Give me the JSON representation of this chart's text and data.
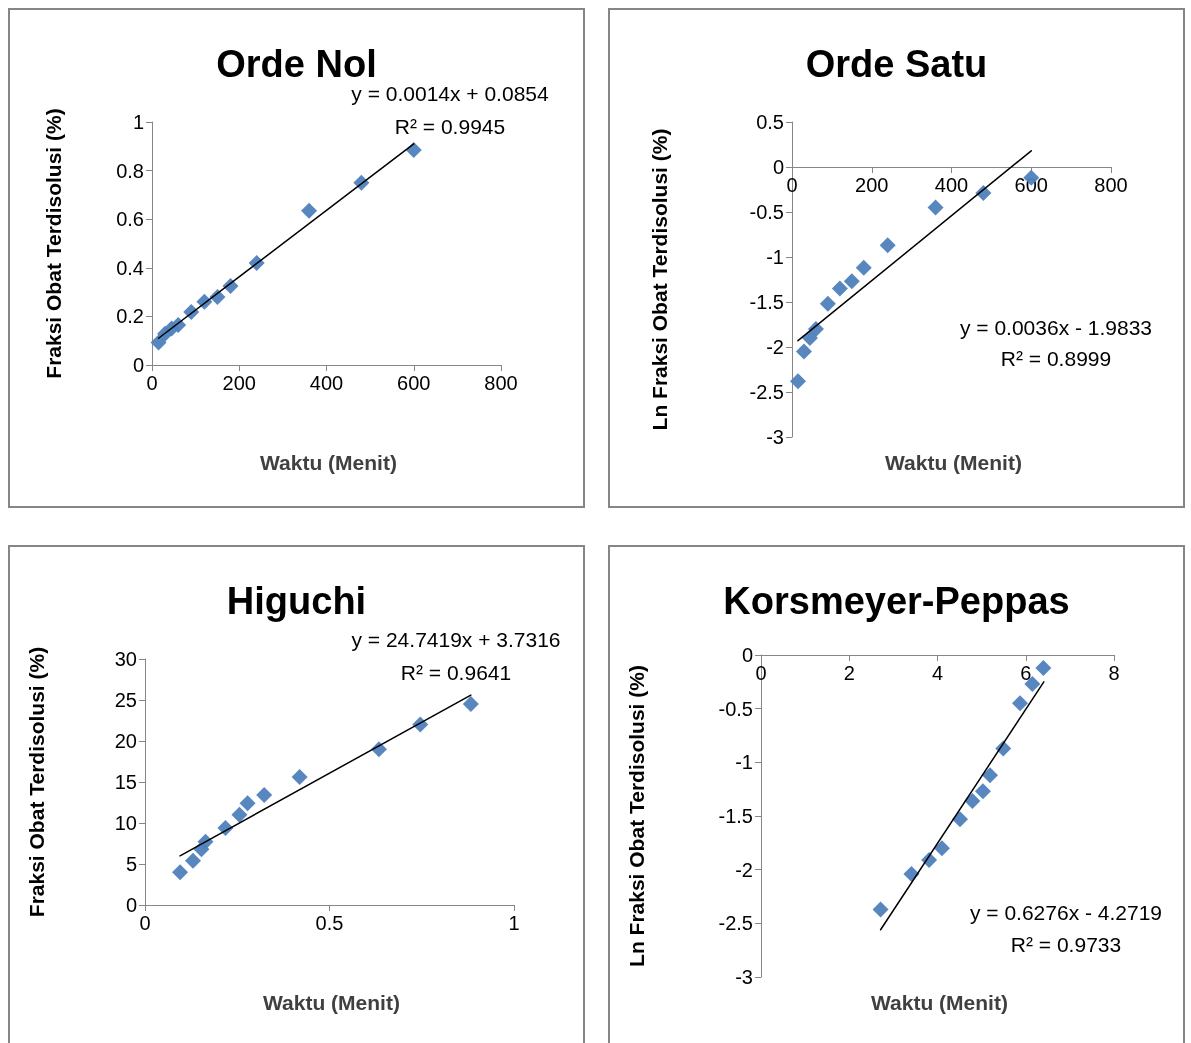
{
  "chart_data": [
    {
      "type": "scatter",
      "title": "Orde Nol",
      "xlabel": "Waktu (Menit)",
      "ylabel": "Fraksi Obat Terdisolusi (%)",
      "xlim": [
        0,
        800
      ],
      "xticks": [
        0,
        200,
        400,
        600,
        800
      ],
      "ylim": [
        0,
        1
      ],
      "yticks": [
        0,
        0.2,
        0.4,
        0.6,
        0.8,
        1
      ],
      "grid": false,
      "marker": "diamond",
      "annotations": [
        "y = 0.0014x + 0.0854",
        "R² = 0.9945"
      ],
      "series": [
        {
          "color": "#4f81bd",
          "x": [
            15,
            30,
            45,
            60,
            90,
            120,
            150,
            180,
            240,
            360,
            480,
            600
          ],
          "values": [
            0.093,
            0.129,
            0.15,
            0.165,
            0.218,
            0.26,
            0.28,
            0.325,
            0.42,
            0.635,
            0.75,
            0.885
          ]
        },
        {
          "type": "line",
          "marker": "none",
          "color": "#000000",
          "x": [
            15,
            600
          ],
          "values": [
            0.11,
            0.91
          ]
        }
      ]
    },
    {
      "type": "scatter",
      "title": "Orde Satu",
      "xlabel": "Waktu (Menit)",
      "ylabel": "Ln Fraksi Obat Terdisolusi (%)",
      "xlim": [
        0,
        800
      ],
      "xticks": [
        0,
        200,
        400,
        600,
        800
      ],
      "ylim": [
        -3,
        0.5
      ],
      "yticks": [
        -3,
        -2.5,
        -2,
        -1.5,
        -1,
        -0.5,
        0,
        0.5
      ],
      "grid": false,
      "marker": "diamond",
      "annotations": [
        "y = 0.0036x - 1.9833",
        "R² = 0.8999"
      ],
      "series": [
        {
          "color": "#4f81bd",
          "x": [
            15,
            30,
            45,
            60,
            90,
            120,
            150,
            180,
            240,
            360,
            480,
            600
          ],
          "values": [
            -2.38,
            -2.05,
            -1.9,
            -1.8,
            -1.52,
            -1.35,
            -1.27,
            -1.12,
            -0.87,
            -0.45,
            -0.29,
            -0.12
          ]
        },
        {
          "type": "line",
          "marker": "none",
          "color": "#000000",
          "x": [
            15,
            600
          ],
          "values": [
            -1.93,
            0.18
          ]
        }
      ]
    },
    {
      "type": "scatter",
      "title": "Higuchi",
      "xlabel": "Waktu (Menit)",
      "ylabel": "Fraksi Obat Terdisolusi (%)",
      "xlim": [
        0,
        1
      ],
      "xticks": [
        0,
        0.5,
        1
      ],
      "ylim": [
        0,
        30
      ],
      "yticks": [
        0,
        5,
        10,
        15,
        20,
        25,
        30
      ],
      "grid": false,
      "marker": "diamond",
      "annotations": [
        "y = 24.7419x + 3.7316",
        "R² = 0.9641"
      ],
      "series": [
        {
          "color": "#4f81bd",
          "x": [
            0.095,
            0.13,
            0.153,
            0.164,
            0.218,
            0.256,
            0.278,
            0.323,
            0.419,
            0.634,
            0.746,
            0.883
          ],
          "values": [
            4.0,
            5.4,
            6.8,
            7.7,
            9.4,
            11.0,
            12.4,
            13.4,
            15.6,
            19.0,
            22.0,
            24.5
          ]
        },
        {
          "type": "line",
          "marker": "none",
          "color": "#000000",
          "x": [
            0.095,
            0.883
          ],
          "values": [
            6.0,
            25.6
          ]
        }
      ]
    },
    {
      "type": "scatter",
      "title": "Korsmeyer-Peppas",
      "xlabel": "Waktu (Menit)",
      "ylabel": "Ln Fraksi Obat Terdisolusi (%)",
      "xlim": [
        0,
        8
      ],
      "xticks": [
        0,
        2,
        4,
        6,
        8
      ],
      "ylim": [
        -3,
        0
      ],
      "yticks": [
        -3,
        -2.5,
        -2,
        -1.5,
        -1,
        -0.5,
        0
      ],
      "grid": false,
      "marker": "diamond",
      "annotations": [
        "y = 0.6276x - 4.2719",
        "R² = 0.9733"
      ],
      "series": [
        {
          "color": "#4f81bd",
          "x": [
            2.71,
            3.41,
            3.81,
            4.1,
            4.51,
            4.79,
            5.03,
            5.19,
            5.49,
            5.87,
            6.15,
            6.4
          ],
          "values": [
            -2.37,
            -2.04,
            -1.91,
            -1.8,
            -1.53,
            -1.36,
            -1.27,
            -1.12,
            -0.87,
            -0.45,
            -0.27,
            -0.12
          ]
        },
        {
          "type": "line",
          "marker": "none",
          "color": "#000000",
          "x": [
            2.71,
            6.41
          ],
          "values": [
            -2.56,
            -0.25
          ]
        }
      ]
    }
  ]
}
